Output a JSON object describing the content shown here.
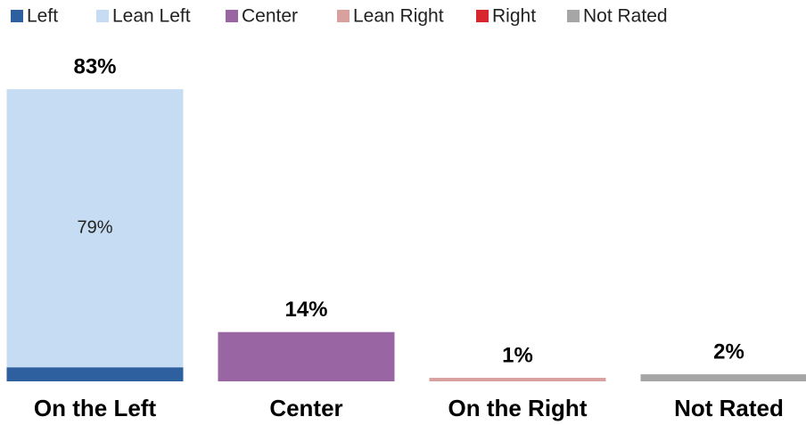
{
  "chart_data": {
    "type": "stacked_bar",
    "categories": [
      "On the Left",
      "Center",
      "On the Right",
      "Not Rated"
    ],
    "series": [
      {
        "name": "Left",
        "color": "#2e5f9e",
        "values": [
          4,
          null,
          null,
          null
        ]
      },
      {
        "name": "Lean Left",
        "color": "#c5dcf2",
        "values": [
          79,
          null,
          null,
          null
        ],
        "value_labels": [
          "79%",
          null,
          null,
          null
        ]
      },
      {
        "name": "Center",
        "color": "#9966a3",
        "values": [
          null,
          14,
          null,
          null
        ]
      },
      {
        "name": "Lean Right",
        "color": "#d9a0a0",
        "values": [
          null,
          null,
          1,
          null
        ]
      },
      {
        "name": "Right",
        "color": "#d7262e",
        "values": [
          null,
          null,
          null,
          null
        ]
      },
      {
        "name": "Not Rated",
        "color": "#a6a6a6",
        "values": [
          null,
          null,
          null,
          2
        ]
      }
    ],
    "totals": [
      83,
      14,
      1,
      2
    ],
    "total_labels": [
      "83%",
      "14%",
      "1%",
      "2%"
    ],
    "ylim": [
      0,
      100
    ]
  }
}
